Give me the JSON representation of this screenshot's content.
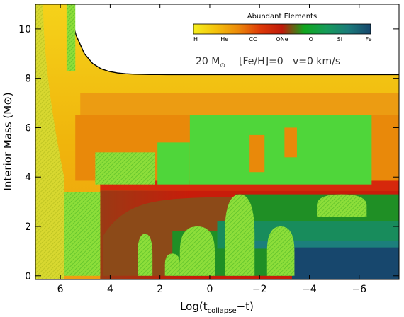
{
  "chart_data": {
    "type": "heatmap",
    "title": "",
    "xlabel": "Log(t_collapse−t)",
    "ylabel": "Interior Mass (M⊙)",
    "xlim": [
      7.0,
      -7.6
    ],
    "ylim": [
      -0.15,
      11.0
    ],
    "x_ticks": [
      6,
      4,
      2,
      0,
      -2,
      -4,
      -6
    ],
    "x_tick_labels": [
      "6",
      "4",
      "2",
      "0",
      "−2",
      "−4",
      "−6"
    ],
    "y_ticks": [
      0,
      2,
      4,
      6,
      8,
      10
    ],
    "y_tick_labels": [
      "0",
      "2",
      "4",
      "6",
      "8",
      "10"
    ],
    "colorbar": {
      "title": "Abundant Elements",
      "labels": [
        "H",
        "He",
        "CO",
        "ONe",
        "O",
        "Si",
        "Fe"
      ],
      "stops": [
        "#f5ee1e",
        "#f4c20c",
        "#ec8a0a",
        "#de3a08",
        "#bf1a0a",
        "#10a61e",
        "#169b5a",
        "#1b7a7a",
        "#16466c"
      ]
    },
    "annotation": {
      "mass": "20 M",
      "sun_symbol": "⊙",
      "metallicity": "[Fe/H]=0",
      "velocity": "v=0 km/s"
    },
    "surface_mass": 8.15,
    "regions": [
      {
        "name": "H-envelope-outer",
        "x": [
          7.0,
          -7.6
        ],
        "y": [
          7.4,
          8.15
        ],
        "color": "#f0b80e"
      },
      {
        "name": "H-envelope-inner",
        "x": [
          5.2,
          -7.6
        ],
        "y": [
          6.5,
          7.4
        ],
        "color": "#ec9a10"
      },
      {
        "name": "He-layer",
        "x": [
          5.4,
          -7.6
        ],
        "y": [
          3.85,
          6.5
        ],
        "color": "#e88a08"
      },
      {
        "name": "He-layer-boundary",
        "x": [
          4.2,
          -7.6
        ],
        "y": [
          3.45,
          3.85
        ],
        "color": "#d93010"
      },
      {
        "name": "CO-core",
        "x": [
          4.4,
          -7.6
        ],
        "y": [
          0.0,
          3.45
        ],
        "color": "#c31c0c"
      },
      {
        "name": "O-core-fill",
        "x": [
          2.0,
          -7.6
        ],
        "y": [
          0.0,
          3.3
        ],
        "color": "#1d8e22"
      },
      {
        "name": "Si-layer",
        "x": [
          -0.5,
          -7.6
        ],
        "y": [
          1.2,
          1.9
        ],
        "color": "#188a55"
      },
      {
        "name": "Fe-core",
        "x": [
          -3.5,
          -7.6
        ],
        "y": [
          0.0,
          1.2
        ],
        "color": "#17476d"
      }
    ]
  }
}
